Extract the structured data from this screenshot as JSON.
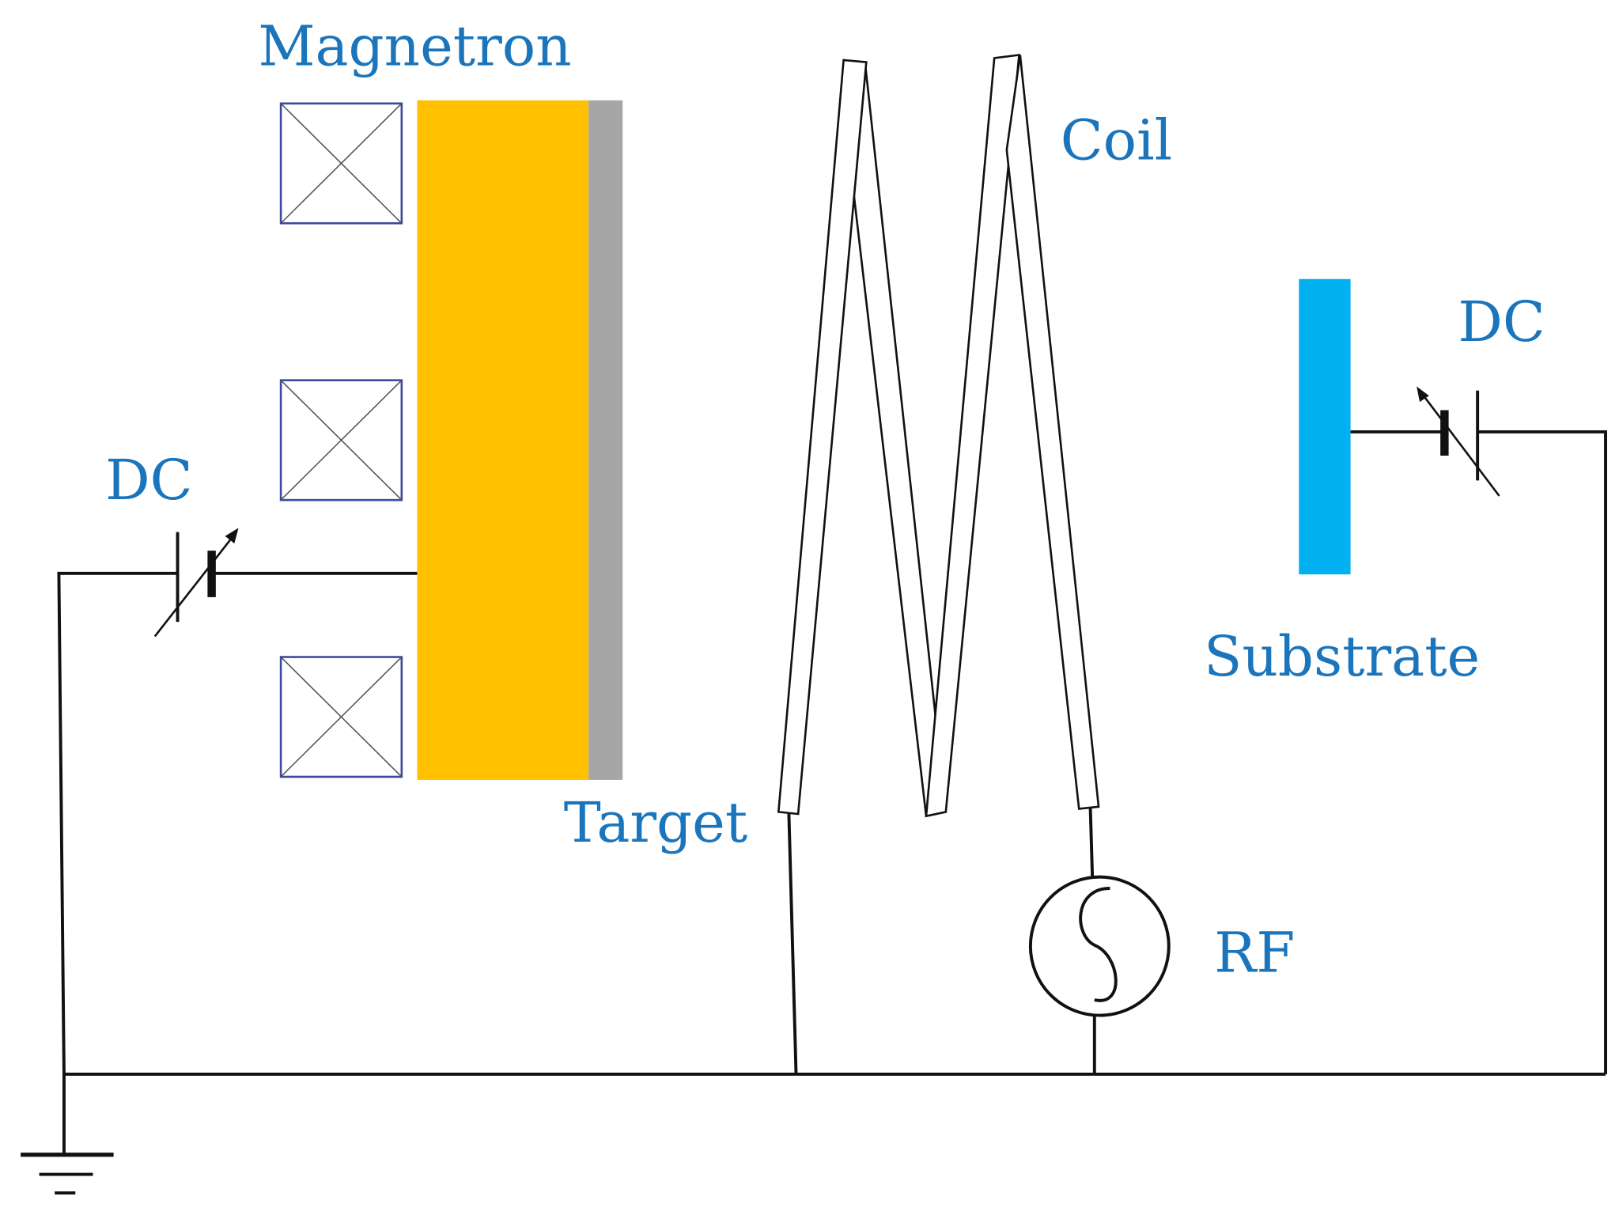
{
  "labels": {
    "magnetron": "Magnetron",
    "coil": "Coil",
    "dc_left": "DC",
    "dc_right": "DC",
    "substrate": "Substrate",
    "target": "Target",
    "rf": "RF"
  },
  "colors": {
    "label": "#1a75bc",
    "magnetron_body": "#ffc000",
    "target": "#a6a6a6",
    "substrate": "#00b0f0",
    "wire": "#111111",
    "magnet_outline": "#3a4aa0"
  }
}
